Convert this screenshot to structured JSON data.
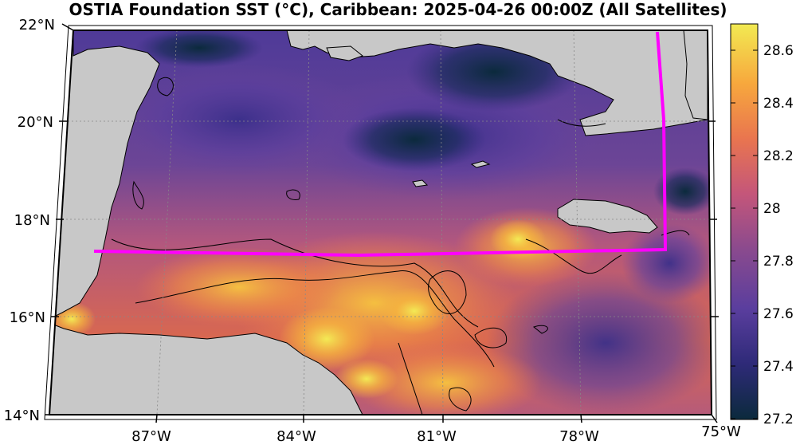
{
  "title": "OSTIA Foundation SST (°C), Caribbean: 2025-04-26 00:00Z (All Satellites)",
  "lat_labels": [
    "22°N",
    "20°N",
    "18°N",
    "16°N",
    "14°N"
  ],
  "lon_labels": [
    "87°W",
    "84°W",
    "81°W",
    "78°W",
    "75°W"
  ],
  "colorbar": {
    "ticks": [
      "28.6",
      "28.4",
      "28.2",
      "28",
      "27.8",
      "27.6",
      "27.4",
      "27.2"
    ],
    "min": 27.2,
    "max": 28.7,
    "colors": [
      "#0b2a3c",
      "#2e2a78",
      "#5a3e9e",
      "#8a4a8e",
      "#c4567a",
      "#e9754f",
      "#f7a83d",
      "#f2ea52"
    ]
  },
  "colors": {
    "land": "#c8c8c8",
    "track": "#ff00ff",
    "frame": "#000000"
  }
}
